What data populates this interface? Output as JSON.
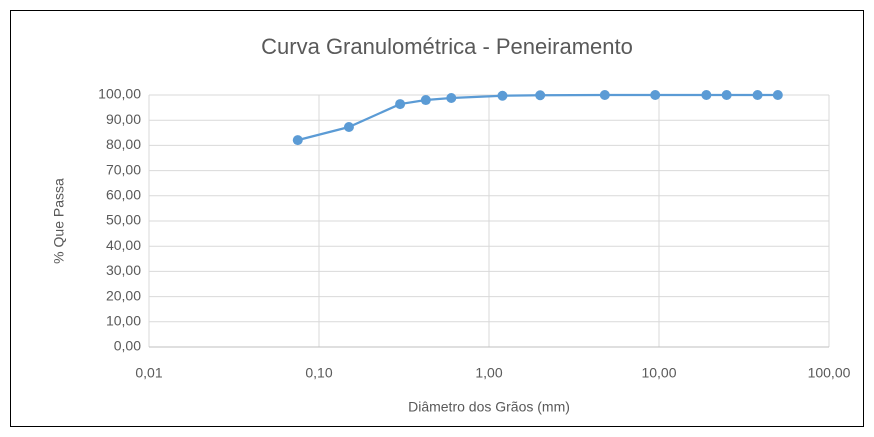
{
  "chart_data": {
    "type": "line",
    "title": "Curva Granulométrica - Peneiramento",
    "xlabel": "Diâmetro dos Grãos (mm)",
    "ylabel": "% Que Passa",
    "x": [
      0.075,
      0.15,
      0.3,
      0.425,
      0.6,
      1.2,
      2.0,
      4.8,
      9.5,
      19,
      25,
      38,
      50
    ],
    "series": [
      {
        "name": "% Que Passa",
        "color": "#5b9bd5",
        "values": [
          82.1,
          87.3,
          96.4,
          98.0,
          98.8,
          99.7,
          99.9,
          100,
          100,
          100,
          100,
          100,
          100
        ]
      }
    ],
    "xscale": "log",
    "xlim": [
      0.01,
      100
    ],
    "xticks": [
      {
        "value": 0.01,
        "label": "0,01"
      },
      {
        "value": 0.1,
        "label": "0,10"
      },
      {
        "value": 1,
        "label": "1,00"
      },
      {
        "value": 10,
        "label": "10,00"
      },
      {
        "value": 100,
        "label": "100,00"
      }
    ],
    "ylim": [
      0,
      100
    ],
    "yticks": [
      {
        "value": 0,
        "label": "0,00"
      },
      {
        "value": 10,
        "label": "10,00"
      },
      {
        "value": 20,
        "label": "20,00"
      },
      {
        "value": 30,
        "label": "30,00"
      },
      {
        "value": 40,
        "label": "40,00"
      },
      {
        "value": 50,
        "label": "50,00"
      },
      {
        "value": 60,
        "label": "60,00"
      },
      {
        "value": 70,
        "label": "70,00"
      },
      {
        "value": 80,
        "label": "80,00"
      },
      {
        "value": 90,
        "label": "90,00"
      },
      {
        "value": 100,
        "label": "100,00"
      }
    ],
    "grid": true
  }
}
